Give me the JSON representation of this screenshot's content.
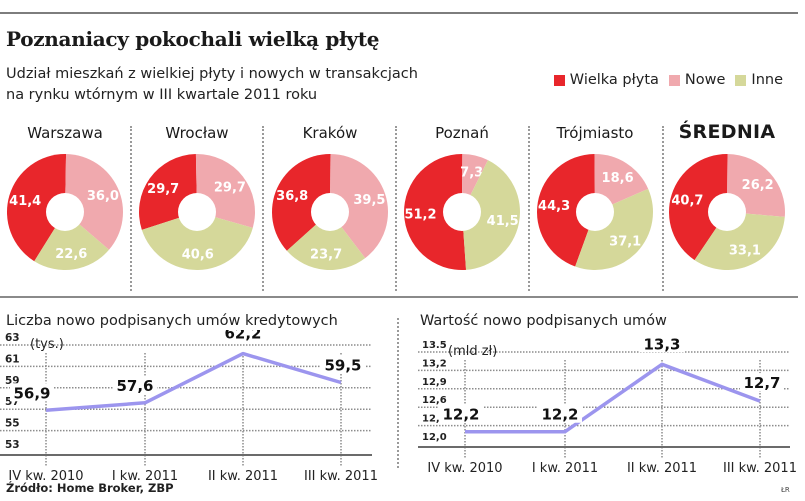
{
  "header": {
    "title": "Poznaniacy pokochali wielką płytę",
    "subtitle_line1": "Udział mieszkań z wielkiej płyty i nowych w transakcjach",
    "subtitle_line2": "na rynku wtórnym w III kwartale 2011 roku"
  },
  "legend": [
    {
      "label": "Wielka płyta",
      "color": "#e8262b"
    },
    {
      "label": "Nowe",
      "color": "#f0a9ae"
    },
    {
      "label": "Inne",
      "color": "#d5d89a"
    }
  ],
  "footer": {
    "source": "Źródło: Home Broker, ZBP",
    "author": "ŁR"
  },
  "chart_data": [
    {
      "type": "pie",
      "variant": "donut-multiples",
      "title": "Udział mieszkań z wielkiej płyty i nowych w transakcjach na rynku wtórnym w III kwartale 2011 roku",
      "series_names": [
        "Wielka płyta",
        "Nowe",
        "Inne"
      ],
      "colors": [
        "#e8262b",
        "#f0a9ae",
        "#d5d89a"
      ],
      "unit": "%",
      "panels": [
        {
          "label": "Warszawa",
          "values": [
            41.4,
            36.0,
            22.6
          ],
          "labels": [
            "41,4",
            "36,0",
            "22,6"
          ]
        },
        {
          "label": "Wrocław",
          "values": [
            29.7,
            29.7,
            40.6
          ],
          "labels": [
            "29,7",
            "29,7",
            "40,6"
          ]
        },
        {
          "label": "Kraków",
          "values": [
            36.8,
            39.5,
            23.7
          ],
          "labels": [
            "36,8",
            "39,5",
            "23,7"
          ]
        },
        {
          "label": "Poznań",
          "values": [
            51.2,
            7.3,
            41.5
          ],
          "labels": [
            "51,2",
            "7,3",
            "41,5"
          ]
        },
        {
          "label": "Trójmiasto",
          "values": [
            44.3,
            18.6,
            37.1
          ],
          "labels": [
            "44,3",
            "18,6",
            "37,1"
          ]
        },
        {
          "label": "ŚREDNIA",
          "values": [
            40.7,
            26.2,
            33.1
          ],
          "labels": [
            "40,7",
            "26,2",
            "33,1"
          ],
          "emphasis": true
        }
      ]
    },
    {
      "type": "line",
      "title": "Liczba nowo podpisanych umów kredytowych",
      "unit_label": "(tys.)",
      "categories": [
        "IV kw. 2010",
        "I kw. 2011",
        "II kw. 2011",
        "III kw. 2011"
      ],
      "series": [
        {
          "name": "Liczba umów",
          "values": [
            56.9,
            57.6,
            62.2,
            59.5
          ],
          "labels": [
            "56,9",
            "57,6",
            "62,2",
            "59,5"
          ],
          "color": "#9c95ee"
        }
      ],
      "yticks": [
        53,
        55,
        57,
        59,
        61,
        63
      ],
      "ytick_labels": [
        "53",
        "55",
        "57",
        "59",
        "61",
        "63"
      ],
      "ylim": [
        53,
        63
      ],
      "grid": true,
      "xlabel": "",
      "ylabel": ""
    },
    {
      "type": "line",
      "title": "Wartość nowo podpisanych umów",
      "unit_label": "(mld zł)",
      "categories": [
        "IV kw. 2010",
        "I kw. 2011",
        "II kw. 2011",
        "III kw. 2011"
      ],
      "series": [
        {
          "name": "Wartość umów",
          "values": [
            12.2,
            12.2,
            13.3,
            12.7
          ],
          "labels": [
            "12,2",
            "12,2",
            "13,3",
            "12,7"
          ],
          "color": "#9c95ee"
        }
      ],
      "yticks": [
        12.0,
        12.3,
        12.6,
        12.9,
        13.2,
        13.5
      ],
      "ytick_labels": [
        "12,0",
        "12,3",
        "12,6",
        "12,9",
        "13,2",
        "13.5"
      ],
      "ylim": [
        12.0,
        13.5
      ],
      "grid": true,
      "xlabel": "",
      "ylabel": ""
    }
  ]
}
